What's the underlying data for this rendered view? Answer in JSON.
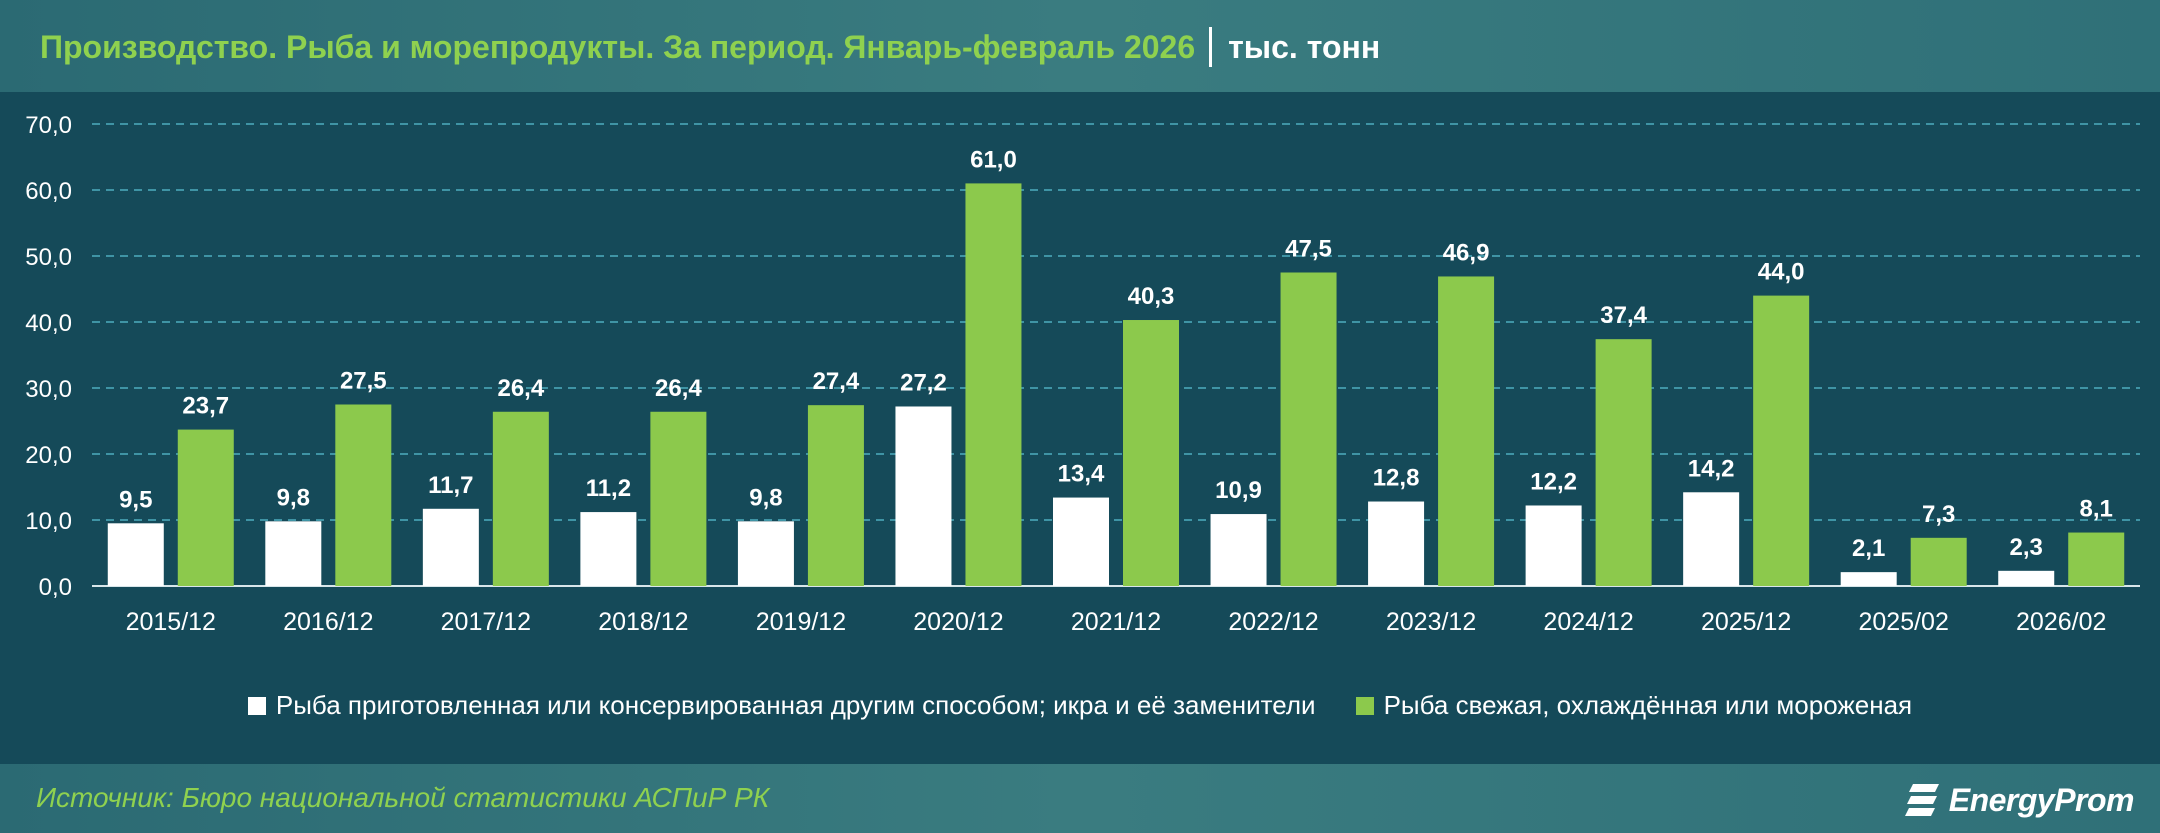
{
  "header": {
    "title": "Производство. Рыба и морепродукты. За период. Январь-февраль 2026",
    "unit": "тыс. тонн"
  },
  "footer": {
    "source": "Источник: Бюро национальной статистики АСПиР РК",
    "logo_text": "EnergyProm"
  },
  "colors": {
    "series1": "#ffffff",
    "series2": "#8cc94c",
    "gridline": "#3f94a5",
    "axis_text": "#ffffff",
    "title_accent": "#8fd14f"
  },
  "chart_data": {
    "type": "bar",
    "title": "Производство. Рыба и морепродукты. За период. Январь-февраль 2026",
    "xlabel": "",
    "ylabel": "",
    "ylim": [
      0,
      70
    ],
    "yticks": [
      "0,0",
      "10,0",
      "20,0",
      "30,0",
      "40,0",
      "50,0",
      "60,0",
      "70,0"
    ],
    "grid": true,
    "legend_position": "bottom",
    "categories": [
      "2015/12",
      "2016/12",
      "2017/12",
      "2018/12",
      "2019/12",
      "2020/12",
      "2021/12",
      "2022/12",
      "2023/12",
      "2024/12",
      "2025/12",
      "2025/02",
      "2026/02"
    ],
    "series": [
      {
        "name": "Рыба приготовленная или консервированная другим способом; икра и её заменители",
        "values": [
          9.5,
          9.8,
          11.7,
          11.2,
          9.8,
          27.2,
          13.4,
          10.9,
          12.8,
          12.2,
          14.2,
          2.1,
          2.3
        ],
        "labels": [
          "9,5",
          "9,8",
          "11,7",
          "11,2",
          "9,8",
          "27,2",
          "13,4",
          "10,9",
          "12,8",
          "12,2",
          "14,2",
          "2,1",
          "2,3"
        ]
      },
      {
        "name": "Рыба свежая, охлаждённая или мороженая",
        "values": [
          23.7,
          27.5,
          26.4,
          26.4,
          27.4,
          61.0,
          40.3,
          47.5,
          46.9,
          37.4,
          44.0,
          7.3,
          8.1
        ],
        "labels": [
          "23,7",
          "27,5",
          "26,4",
          "26,4",
          "27,4",
          "61,0",
          "40,3",
          "47,5",
          "46,9",
          "37,4",
          "44,0",
          "7,3",
          "8,1"
        ]
      }
    ]
  }
}
